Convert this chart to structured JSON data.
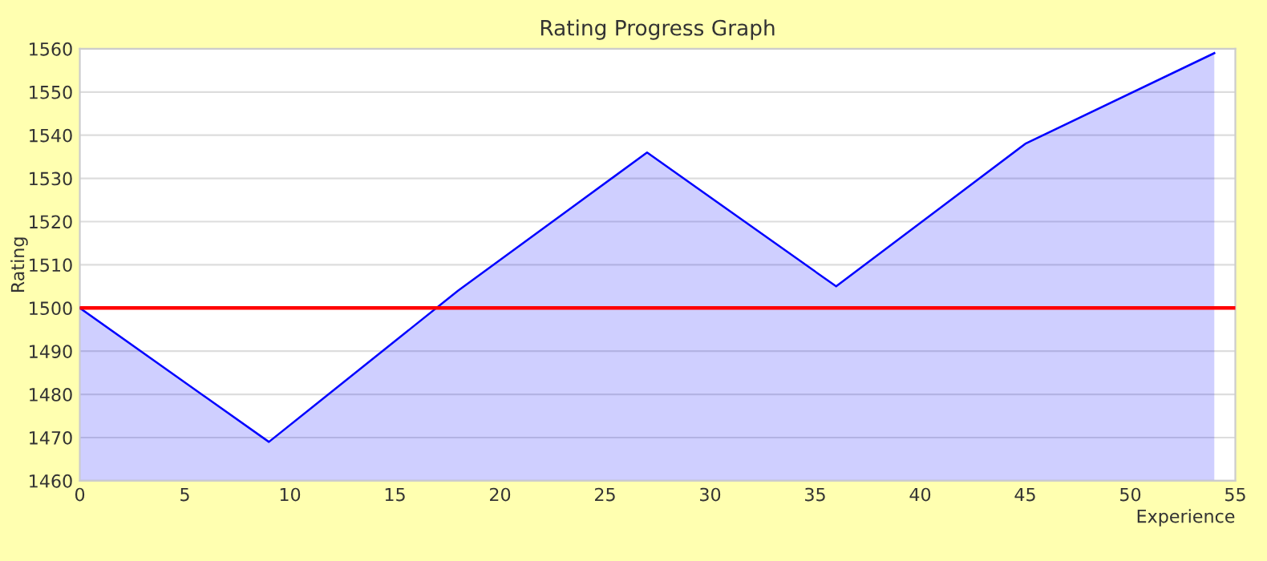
{
  "chart_data": {
    "type": "area",
    "title": "Rating Progress Graph",
    "xlabel": "Experience",
    "ylabel": "Rating",
    "x": [
      0,
      9,
      18,
      27,
      36,
      45,
      54
    ],
    "series": [
      {
        "color": "#0000ff",
        "values": [
          1500,
          1469,
          1504,
          1536,
          1505,
          1538,
          1559
        ]
      }
    ],
    "xlim": [
      0,
      55
    ],
    "xticks": [
      0,
      5,
      10,
      15,
      20,
      25,
      30,
      35,
      40,
      45,
      50,
      55
    ],
    "ylim": [
      1460,
      1560
    ],
    "yticks": [
      1460,
      1470,
      1480,
      1490,
      1500,
      1510,
      1520,
      1530,
      1540,
      1550,
      1560
    ],
    "ref_lines": [
      {
        "axis": "y",
        "value": 1500,
        "label": null,
        "color": "#ff0000"
      }
    ],
    "grid": "y"
  }
}
